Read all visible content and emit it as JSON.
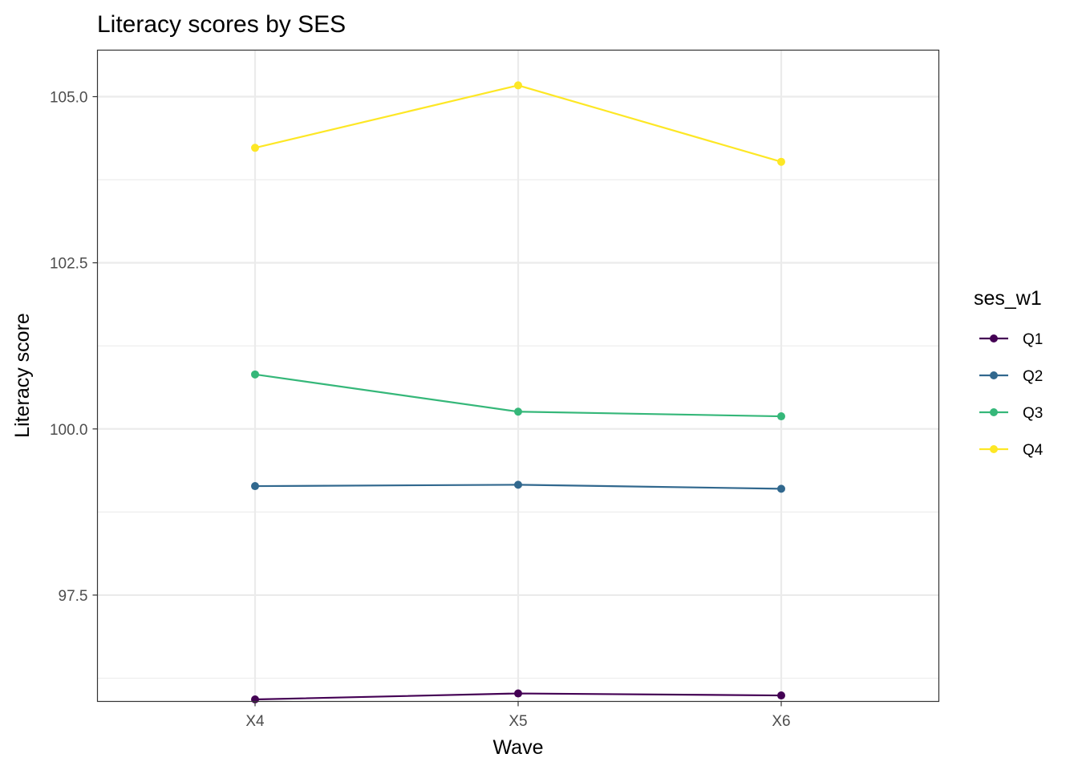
{
  "chart_data": {
    "type": "line",
    "title": "Literacy scores by SES",
    "xlabel": "Wave",
    "ylabel": "Literacy score",
    "categories": [
      "X4",
      "X5",
      "X6"
    ],
    "ylim": [
      95.9,
      105.7
    ],
    "yticks": [
      97.5,
      100.0,
      102.5,
      105.0
    ],
    "ytick_labels": [
      "97.5",
      "100.0",
      "102.5",
      "105.0"
    ],
    "yminor": [
      96.25,
      98.75,
      101.25,
      103.75
    ],
    "grid": true,
    "legend": {
      "title": "ses_w1",
      "position": "right"
    },
    "series": [
      {
        "name": "Q1",
        "color": "#440154",
        "values": [
          95.93,
          96.02,
          95.99
        ]
      },
      {
        "name": "Q2",
        "color": "#31688E",
        "values": [
          99.14,
          99.16,
          99.1
        ]
      },
      {
        "name": "Q3",
        "color": "#35B779",
        "values": [
          100.82,
          100.26,
          100.19
        ]
      },
      {
        "name": "Q4",
        "color": "#FDE725",
        "values": [
          104.23,
          105.17,
          104.02
        ]
      }
    ]
  }
}
